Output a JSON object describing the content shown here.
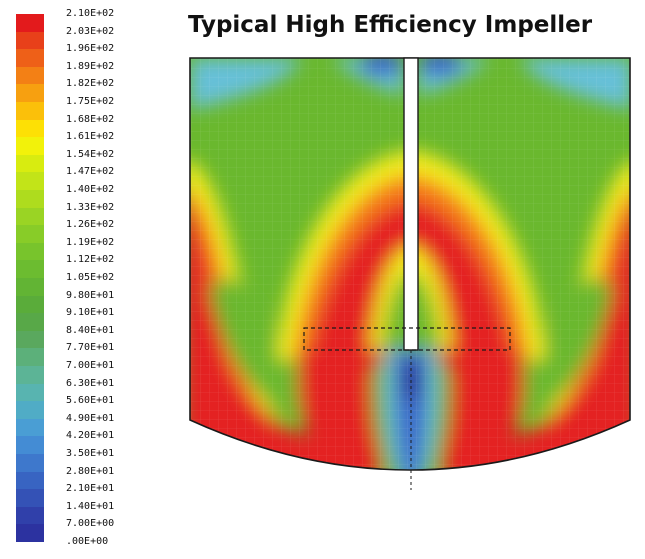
{
  "title": "Typical High Efficiency Impeller",
  "legend": {
    "labels": [
      "2.10E+02",
      "2.03E+02",
      "1.96E+02",
      "1.89E+02",
      "1.82E+02",
      "1.75E+02",
      "1.68E+02",
      "1.61E+02",
      "1.54E+02",
      "1.47E+02",
      "1.40E+02",
      "1.33E+02",
      "1.26E+02",
      "1.19E+02",
      "1.12E+02",
      "1.05E+02",
      "9.80E+01",
      "9.10E+01",
      "8.40E+01",
      "7.70E+01",
      "7.00E+01",
      "6.30E+01",
      "5.60E+01",
      "4.90E+01",
      "4.20E+01",
      "3.50E+01",
      "2.80E+01",
      "2.10E+01",
      "1.40E+01",
      "7.00E+00",
      ".00E+00"
    ],
    "colors": [
      "#e31a1c",
      "#e8401a",
      "#ee6018",
      "#f38015",
      "#f7a010",
      "#fbc00a",
      "#fde005",
      "#f2f20a",
      "#d8ec10",
      "#c2e418",
      "#aedc1e",
      "#9ad424",
      "#88cc28",
      "#78c42c",
      "#6cbc30",
      "#62b434",
      "#5aac3a",
      "#58a848",
      "#5aa85e",
      "#5cb07a",
      "#5cb496",
      "#58b4b0",
      "#50acc6",
      "#4a9ed4",
      "#448cd4",
      "#3e78cc",
      "#3864c2",
      "#3452b6",
      "#3040aa",
      "#2c32a0",
      "#ffffff"
    ]
  },
  "diagram": {
    "colors": {
      "red": "#e42220",
      "orange": "#f57a1c",
      "yellow": "#f2ea1a",
      "green": "#6ab82e",
      "cyan": "#66c0d8",
      "blue": "#3a68c8",
      "navy": "#2c3a9e"
    }
  }
}
